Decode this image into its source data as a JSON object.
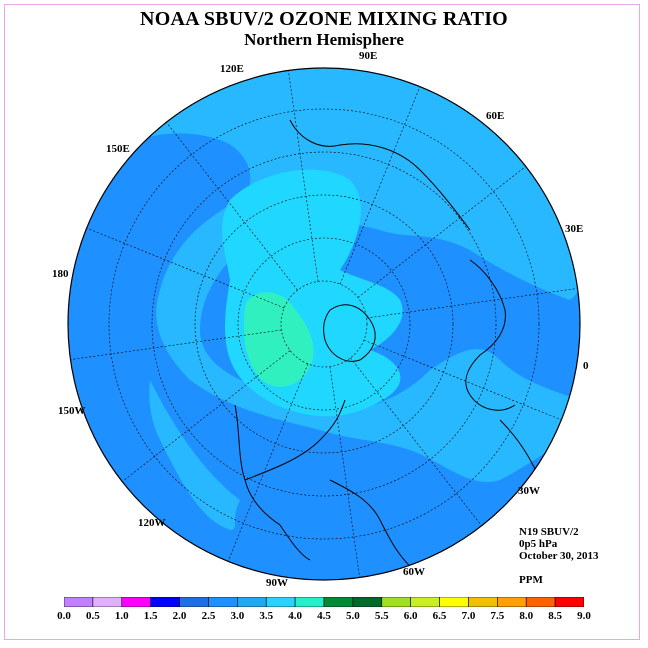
{
  "title": "NOAA SBUV/2 OZONE MIXING RATIO",
  "subtitle": "Northern Hemisphere",
  "lon_labels": [
    "90E",
    "60E",
    "30E",
    "0",
    "30W",
    "60W",
    "90W",
    "120W",
    "150W",
    "180",
    "150E",
    "120E"
  ],
  "info": {
    "instrument": "N19 SBUV/2",
    "level": "0p5 hPa",
    "date": "October 30, 2013",
    "units": "PPM"
  },
  "colorbar": {
    "labels": [
      "0.0",
      "0.5",
      "1.0",
      "1.5",
      "2.0",
      "2.5",
      "3.0",
      "3.5",
      "4.0",
      "4.5",
      "5.0",
      "5.5",
      "6.0",
      "6.5",
      "7.0",
      "7.5",
      "8.0",
      "8.5",
      "9.0"
    ],
    "colors": [
      "#c080ff",
      "#e0b0ff",
      "#ff00ff",
      "#0000ff",
      "#1e6fe6",
      "#1e90ff",
      "#20a8f0",
      "#28d4ff",
      "#22f0c8",
      "#008a38",
      "#006a2a",
      "#a0e020",
      "#c8f020",
      "#ffff00",
      "#f0c000",
      "#ffa000",
      "#ff6000",
      "#ff0000",
      "#a06040"
    ]
  },
  "map_colors": {
    "level_2_5": "#1e90ff",
    "level_3_0": "#28b8ff",
    "level_3_5": "#20d8ff",
    "level_4_0": "#30f0c0"
  }
}
